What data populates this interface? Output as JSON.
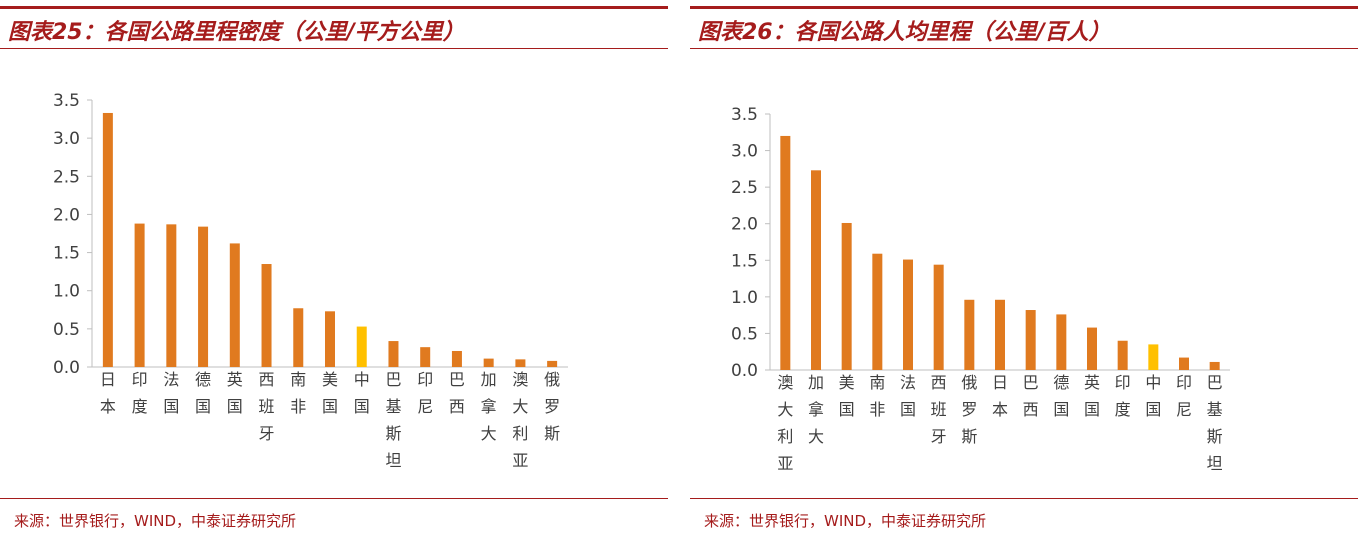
{
  "colors": {
    "accent": "#a51c1c",
    "bar": "#e07a1f",
    "highlight": "#ffc000",
    "axis": "#bfbfbf",
    "tick_text": "#404040"
  },
  "panels": [
    {
      "title": "图表25：各国公路里程密度（公里/平方公里）",
      "source": "来源：世界银行，WIND，中泰证券研究所"
    },
    {
      "title": "图表26：各国公路人均里程（公里/百人）",
      "source": "来源：世界银行，WIND，中泰证券研究所"
    }
  ],
  "chart_data": [
    {
      "type": "bar",
      "title": "图表25：各国公路里程密度（公里/平方公里）",
      "categories": [
        "日本",
        "印度",
        "法国",
        "德国",
        "英国",
        "西班牙",
        "南非",
        "美国",
        "中国",
        "巴基斯坦",
        "印尼",
        "巴西",
        "加拿大",
        "澳大利亚",
        "俄罗斯"
      ],
      "values": [
        3.33,
        1.88,
        1.87,
        1.84,
        1.62,
        1.35,
        0.77,
        0.73,
        0.53,
        0.34,
        0.26,
        0.21,
        0.11,
        0.1,
        0.08
      ],
      "highlight": "中国",
      "ylim": [
        0,
        3.5
      ],
      "yticks": [
        "0.0",
        "0.5",
        "1.0",
        "1.5",
        "2.0",
        "2.5",
        "3.0",
        "3.5"
      ],
      "grid": false,
      "legend": "none"
    },
    {
      "type": "bar",
      "title": "图表26：各国公路人均里程（公里/百人）",
      "categories": [
        "澳大利亚",
        "加拿大",
        "美国",
        "南非",
        "法国",
        "西班牙",
        "俄罗斯",
        "日本",
        "巴西",
        "德国",
        "英国",
        "印度",
        "中国",
        "印尼",
        "巴基斯坦"
      ],
      "values": [
        3.2,
        2.73,
        2.01,
        1.59,
        1.51,
        1.44,
        0.96,
        0.96,
        0.82,
        0.76,
        0.58,
        0.4,
        0.35,
        0.17,
        0.11
      ],
      "highlight": "中国",
      "ylim": [
        0,
        3.5
      ],
      "yticks": [
        "0.0",
        "0.5",
        "1.0",
        "1.5",
        "2.0",
        "2.5",
        "3.0",
        "3.5"
      ],
      "grid": false,
      "legend": "none"
    }
  ]
}
